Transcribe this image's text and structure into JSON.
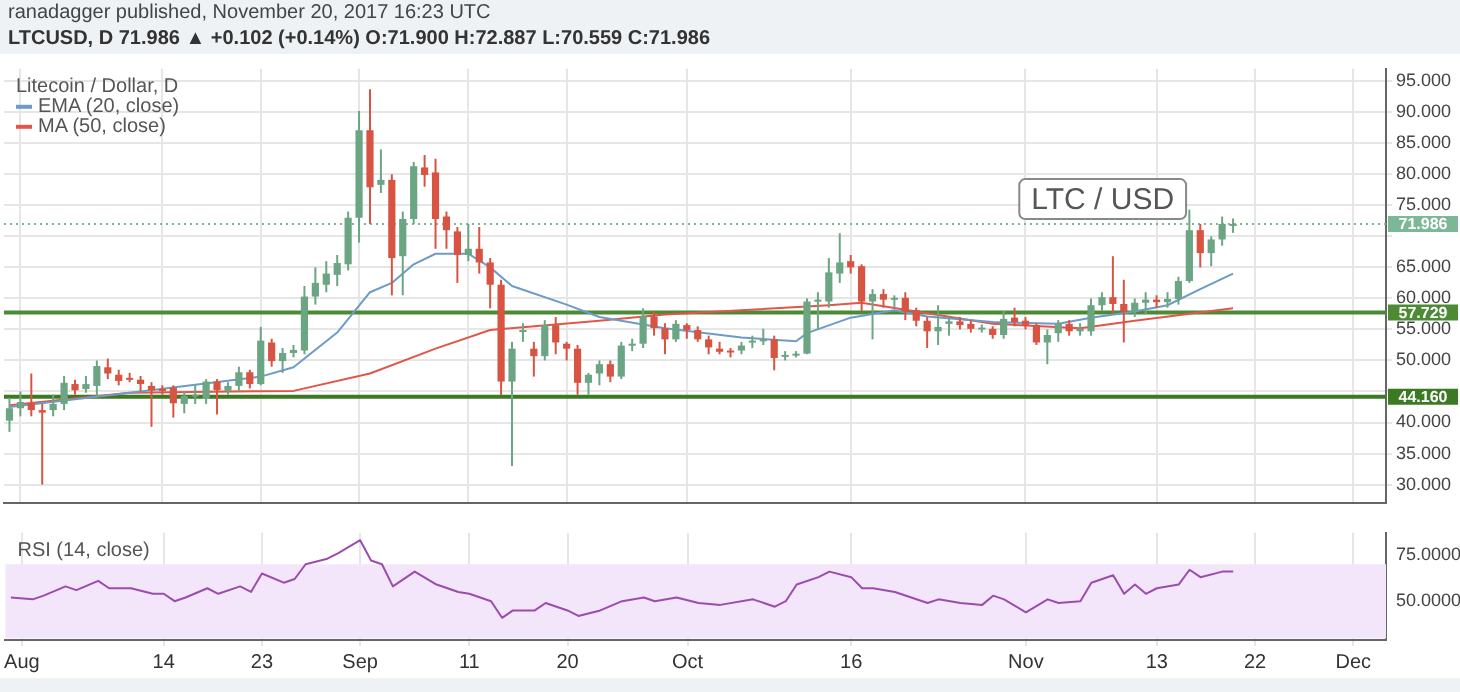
{
  "chart_data": [
    {
      "type": "candlestick",
      "title": "ranadagger published, November 20, 2017 16:23 UTC",
      "subtitle": "LTCUSD, D 71.986 ▲ +0.102 (+0.14%) O:71.900 H:72.887 L:70.559 C:71.986",
      "annotations": [
        "Litecoin / Dollar, D",
        "LTC / USD"
      ],
      "x": [
        "2017-07-31",
        "2017-08-01",
        "2017-08-02",
        "2017-08-03",
        "2017-08-04",
        "2017-08-05",
        "2017-08-06",
        "2017-08-07",
        "2017-08-08",
        "2017-08-09",
        "2017-08-10",
        "2017-08-11",
        "2017-08-12",
        "2017-08-13",
        "2017-08-14",
        "2017-08-15",
        "2017-08-16",
        "2017-08-17",
        "2017-08-18",
        "2017-08-19",
        "2017-08-20",
        "2017-08-21",
        "2017-08-22",
        "2017-08-23",
        "2017-08-24",
        "2017-08-25",
        "2017-08-26",
        "2017-08-27",
        "2017-08-28",
        "2017-08-29",
        "2017-08-30",
        "2017-08-31",
        "2017-09-01",
        "2017-09-02",
        "2017-09-03",
        "2017-09-04",
        "2017-09-05",
        "2017-09-06",
        "2017-09-07",
        "2017-09-08",
        "2017-09-09",
        "2017-09-10",
        "2017-09-11",
        "2017-09-12",
        "2017-09-13",
        "2017-09-14",
        "2017-09-15",
        "2017-09-16",
        "2017-09-17",
        "2017-09-18",
        "2017-09-19",
        "2017-09-20",
        "2017-09-21",
        "2017-09-22",
        "2017-09-23",
        "2017-09-24",
        "2017-09-25",
        "2017-09-26",
        "2017-09-27",
        "2017-09-28",
        "2017-09-29",
        "2017-09-30",
        "2017-10-01",
        "2017-10-02",
        "2017-10-03",
        "2017-10-04",
        "2017-10-05",
        "2017-10-06",
        "2017-10-07",
        "2017-10-08",
        "2017-10-09",
        "2017-10-10",
        "2017-10-11",
        "2017-10-12",
        "2017-10-13",
        "2017-10-14",
        "2017-10-15",
        "2017-10-16",
        "2017-10-17",
        "2017-10-18",
        "2017-10-19",
        "2017-10-20",
        "2017-10-21",
        "2017-10-22",
        "2017-10-23",
        "2017-10-24",
        "2017-10-25",
        "2017-10-26",
        "2017-10-27",
        "2017-10-28",
        "2017-10-29",
        "2017-10-30",
        "2017-10-31",
        "2017-11-01",
        "2017-11-02",
        "2017-11-03",
        "2017-11-04",
        "2017-11-05",
        "2017-11-06",
        "2017-11-07",
        "2017-11-08",
        "2017-11-09",
        "2017-11-10",
        "2017-11-11",
        "2017-11-12",
        "2017-11-13",
        "2017-11-14",
        "2017-11-15",
        "2017-11-16",
        "2017-11-17",
        "2017-11-18",
        "2017-11-19",
        "2017-11-20"
      ],
      "ohlc": [
        [
          40.3,
          44,
          38.5,
          42.3
        ],
        [
          42.3,
          45,
          41,
          43.3
        ],
        [
          43.1,
          47.9,
          41,
          42
        ],
        [
          42,
          43,
          30,
          41.6
        ],
        [
          42,
          44.5,
          41,
          43
        ],
        [
          43,
          47.5,
          42,
          46.4
        ],
        [
          46.2,
          46.9,
          44.5,
          45.2
        ],
        [
          45.4,
          47.5,
          44.8,
          46.2
        ],
        [
          45.9,
          50,
          44,
          49.1
        ],
        [
          48.9,
          50.3,
          47,
          47.9
        ],
        [
          47.7,
          48.5,
          46,
          46.7
        ],
        [
          47.2,
          48,
          46.5,
          46.9
        ],
        [
          46.9,
          47.5,
          45,
          46.2
        ],
        [
          45.9,
          46.5,
          39.3,
          45.2
        ],
        [
          45.4,
          46,
          44.5,
          45.1
        ],
        [
          45.6,
          46,
          40.8,
          43.1
        ],
        [
          43,
          45,
          41.5,
          44.3
        ],
        [
          44.3,
          46,
          43,
          44.5
        ],
        [
          43.8,
          47,
          43,
          46.6
        ],
        [
          46.6,
          47,
          41.3,
          45.2
        ],
        [
          45.1,
          46.5,
          44.5,
          45.9
        ],
        [
          45.9,
          49,
          45,
          48.1
        ],
        [
          48.1,
          48.5,
          45.5,
          46.2
        ],
        [
          46.2,
          55.4,
          46,
          53.2
        ],
        [
          52.9,
          53.5,
          49,
          49.9
        ],
        [
          49.9,
          52,
          48,
          51.2
        ],
        [
          51.2,
          52.5,
          50.5,
          51.7
        ],
        [
          51.6,
          62,
          51,
          60.3
        ],
        [
          60.3,
          65,
          59,
          62.5
        ],
        [
          62.2,
          66,
          61,
          64
        ],
        [
          63.8,
          67,
          62,
          65.7
        ],
        [
          65.5,
          74,
          64.5,
          73
        ],
        [
          73,
          90.2,
          69,
          87.1
        ],
        [
          87.1,
          93.7,
          72,
          77.9
        ],
        [
          78.3,
          84,
          77,
          79.1
        ],
        [
          79.1,
          80,
          60.5,
          66.5
        ],
        [
          66.8,
          74,
          60.5,
          72.8
        ],
        [
          72.8,
          82,
          72,
          81.3
        ],
        [
          81.1,
          83.1,
          78,
          79.9
        ],
        [
          80.3,
          82.5,
          68,
          72.8
        ],
        [
          73.2,
          74,
          68,
          71
        ],
        [
          70.8,
          71.5,
          62.5,
          67
        ],
        [
          67,
          72,
          66,
          68
        ],
        [
          68,
          71.5,
          64,
          65.8
        ],
        [
          65.8,
          66.5,
          58.4,
          62.2
        ],
        [
          62.2,
          63,
          44.4,
          46.6
        ],
        [
          46.6,
          53,
          33,
          51.9
        ],
        [
          54.7,
          56,
          53,
          54.9
        ],
        [
          51.9,
          53,
          47.4,
          50.7
        ],
        [
          50.7,
          56.5,
          50,
          55.7
        ],
        [
          55.7,
          57,
          51,
          52.9
        ],
        [
          52.7,
          53,
          50,
          51.9
        ],
        [
          51.9,
          52.5,
          44.5,
          46.4
        ],
        [
          46.4,
          48,
          44.5,
          47.7
        ],
        [
          47.9,
          50,
          46,
          49.4
        ],
        [
          49.4,
          50,
          46.5,
          47.4
        ],
        [
          47.4,
          53,
          47,
          52.4
        ],
        [
          52.4,
          53.5,
          51.5,
          52.7
        ],
        [
          52.7,
          58.4,
          52,
          57.1
        ],
        [
          57.1,
          58,
          54,
          55.2
        ],
        [
          55.2,
          56,
          51,
          53.4
        ],
        [
          53.4,
          56.5,
          53,
          55.9
        ],
        [
          55.7,
          56,
          53.5,
          54.9
        ],
        [
          54.9,
          55.5,
          53,
          53.4
        ],
        [
          53.4,
          54,
          51,
          52.1
        ],
        [
          51.9,
          53,
          51,
          51.4
        ],
        [
          51.6,
          52,
          50.5,
          51.4
        ],
        [
          51.6,
          53,
          51,
          52.4
        ],
        [
          52.9,
          54,
          52,
          53.2
        ],
        [
          53.1,
          55.1,
          52.5,
          53.4
        ],
        [
          53.4,
          54,
          48.4,
          50.4
        ],
        [
          50.6,
          51.5,
          50,
          50.9
        ],
        [
          50.9,
          51.5,
          50.5,
          51.1
        ],
        [
          51.1,
          60,
          51,
          59.5
        ],
        [
          59.5,
          61,
          55,
          59.8
        ],
        [
          59.5,
          66.5,
          58.5,
          64.2
        ],
        [
          64,
          70.5,
          62.5,
          65.8
        ],
        [
          66,
          67,
          64,
          65
        ],
        [
          65.2,
          65.5,
          58,
          59.5
        ],
        [
          59.5,
          61.5,
          53.4,
          60.7
        ],
        [
          60.7,
          61.5,
          58.5,
          59.8
        ],
        [
          59.9,
          60.5,
          58.5,
          60.1
        ],
        [
          60.1,
          61,
          56.5,
          57.9
        ],
        [
          58.1,
          58.5,
          55.5,
          56.4
        ],
        [
          56.4,
          57,
          52,
          54.7
        ],
        [
          54.7,
          58.9,
          52.5,
          55.4
        ],
        [
          55.9,
          57,
          54,
          56.3
        ],
        [
          56.3,
          57,
          55,
          55.7
        ],
        [
          55.9,
          56.5,
          54.5,
          55.1
        ],
        [
          55.1,
          55.8,
          54.5,
          55.3
        ],
        [
          55.1,
          55.5,
          53.5,
          54.1
        ],
        [
          54.1,
          58,
          53.5,
          56.7
        ],
        [
          56.9,
          58.5,
          55.5,
          56.2
        ],
        [
          56.4,
          57,
          55,
          55.7
        ],
        [
          55.7,
          56,
          52.5,
          52.9
        ],
        [
          52.9,
          55,
          49.4,
          54.1
        ],
        [
          54.4,
          56.5,
          53,
          55.9
        ],
        [
          55.9,
          56.5,
          54,
          54.7
        ],
        [
          54.7,
          56,
          54,
          55.1
        ],
        [
          54.7,
          60,
          54,
          58.9
        ],
        [
          58.9,
          61,
          58,
          60.2
        ],
        [
          60.2,
          66.8,
          57.5,
          59.1
        ],
        [
          59.1,
          63,
          52.9,
          57.9
        ],
        [
          57.9,
          60,
          57,
          59.3
        ],
        [
          59.3,
          61,
          57.5,
          59.8
        ],
        [
          59.8,
          60.5,
          58.5,
          59.4
        ],
        [
          59.4,
          61,
          58.5,
          59.9
        ],
        [
          59.9,
          63.5,
          59,
          62.8
        ],
        [
          62.8,
          74.3,
          62.5,
          71
        ],
        [
          71,
          72,
          65,
          67.3
        ],
        [
          67.3,
          70,
          65.2,
          69.5
        ],
        [
          69.5,
          73.2,
          68.5,
          72
        ],
        [
          71.9,
          72.887,
          70.559,
          71.986
        ]
      ],
      "colors": [
        "#6ba583",
        "#6ba583",
        "#d75442",
        "#d75442",
        "#6ba583",
        "#6ba583",
        "#d75442",
        "#6ba583",
        "#6ba583",
        "#d75442",
        "#d75442",
        "#d75442",
        "#d75442",
        "#d75442",
        "#d75442",
        "#d75442",
        "#6ba583",
        "#6ba583",
        "#6ba583",
        "#d75442",
        "#6ba583",
        "#6ba583",
        "#d75442",
        "#6ba583",
        "#d75442",
        "#6ba583",
        "#6ba583",
        "#6ba583",
        "#6ba583",
        "#6ba583",
        "#6ba583",
        "#6ba583",
        "#6ba583",
        "#d75442",
        "#6ba583",
        "#d75442",
        "#6ba583",
        "#6ba583",
        "#d75442",
        "#d75442",
        "#d75442",
        "#d75442",
        "#6ba583",
        "#d75442",
        "#d75442",
        "#d75442",
        "#6ba583",
        "#6ba583",
        "#d75442",
        "#6ba583",
        "#d75442",
        "#d75442",
        "#d75442",
        "#6ba583",
        "#6ba583",
        "#d75442",
        "#6ba583",
        "#6ba583",
        "#6ba583",
        "#d75442",
        "#d75442",
        "#6ba583",
        "#d75442",
        "#d75442",
        "#d75442",
        "#d75442",
        "#d75442",
        "#6ba583",
        "#6ba583",
        "#6ba583",
        "#d75442",
        "#6ba583",
        "#6ba583",
        "#6ba583",
        "#6ba583",
        "#6ba583",
        "#6ba583",
        "#d75442",
        "#d75442",
        "#6ba583",
        "#d75442",
        "#6ba583",
        "#d75442",
        "#d75442",
        "#d75442",
        "#6ba583",
        "#6ba583",
        "#d75442",
        "#d75442",
        "#6ba583",
        "#d75442",
        "#6ba583",
        "#d75442",
        "#d75442",
        "#d75442",
        "#6ba583",
        "#6ba583",
        "#d75442",
        "#6ba583",
        "#6ba583",
        "#6ba583",
        "#d75442",
        "#d75442",
        "#6ba583",
        "#6ba583",
        "#d75442",
        "#6ba583",
        "#6ba583",
        "#6ba583",
        "#d75442",
        "#6ba583",
        "#6ba583",
        "#6ba583"
      ],
      "series": [
        {
          "name": "EMA (20, close)",
          "type": "line",
          "color": "#6d9bc8",
          "x": [
            "2017-07-31",
            "2017-08-12",
            "2017-08-23",
            "2017-08-26",
            "2017-08-30",
            "2017-09-02",
            "2017-09-04",
            "2017-09-06",
            "2017-09-08",
            "2017-09-11",
            "2017-09-13",
            "2017-09-15",
            "2017-09-20",
            "2017-09-23",
            "2017-09-29",
            "2017-10-06",
            "2017-10-11",
            "2017-10-12",
            "2017-10-16",
            "2017-10-20",
            "2017-10-23",
            "2017-10-29",
            "2017-11-04",
            "2017-11-07",
            "2017-11-11",
            "2017-11-14",
            "2017-11-17",
            "2017-11-20"
          ],
          "values": [
            42.5,
            45,
            47.4,
            48.9,
            54.5,
            61,
            62.5,
            65.5,
            67.2,
            67.2,
            65,
            62,
            59,
            57,
            55.2,
            53.7,
            53.1,
            54.4,
            56.9,
            58.1,
            57.1,
            56.2,
            55.9,
            56.9,
            57.9,
            58.9,
            61.5,
            64
          ]
        },
        {
          "name": "MA (50, close)",
          "type": "line",
          "color": "#e0574a",
          "x": [
            "2017-07-31",
            "2017-08-11",
            "2017-08-26",
            "2017-09-02",
            "2017-09-08",
            "2017-09-13",
            "2017-09-23",
            "2017-09-29",
            "2017-10-06",
            "2017-10-14",
            "2017-10-17",
            "2017-10-22",
            "2017-10-29",
            "2017-11-06",
            "2017-11-11",
            "2017-11-20"
          ],
          "values": [
            42.8,
            44.8,
            45.1,
            47.9,
            51.9,
            54.9,
            56.4,
            57.4,
            58.1,
            58.9,
            59.3,
            57.9,
            55.9,
            55.2,
            56.4,
            58.4
          ]
        }
      ],
      "ref_lines": [
        {
          "axis": "y",
          "value": 57.729,
          "label": "57.729",
          "color": "#4c8a35"
        },
        {
          "axis": "y",
          "value": 44.16,
          "label": "44.160",
          "color": "#3b7a22"
        },
        {
          "axis": "y",
          "value": 71.986,
          "label": "71.986",
          "color": "#7db896",
          "line_style": "dotted"
        }
      ],
      "xlim": [
        "2017-07-30T12:00",
        "2017-12-04"
      ],
      "xticks": [
        {
          "value": "2017-08-01",
          "label": null
        },
        {
          "value": "2017-08-14",
          "label": null
        },
        {
          "value": "2017-08-23",
          "label": null
        },
        {
          "value": "2017-09-01",
          "label": null
        },
        {
          "value": "2017-09-11",
          "label": null
        },
        {
          "value": "2017-09-20",
          "label": null
        },
        {
          "value": "2017-10-01",
          "label": null
        },
        {
          "value": "2017-10-16",
          "label": null
        },
        {
          "value": "2017-11-01",
          "label": null
        },
        {
          "value": "2017-11-13",
          "label": null
        },
        {
          "value": "2017-11-22",
          "label": null
        },
        {
          "value": "2017-12-01",
          "label": null
        }
      ],
      "ylim": [
        27,
        97
      ],
      "yticks": [
        {
          "value": 30,
          "label": "30.000"
        },
        {
          "value": 35,
          "label": "35.000"
        },
        {
          "value": 40,
          "label": "40.000"
        },
        {
          "value": 45,
          "label": null
        },
        {
          "value": 50,
          "label": "50.000"
        },
        {
          "value": 55,
          "label": "55.000"
        },
        {
          "value": 60,
          "label": "60.000"
        },
        {
          "value": 65,
          "label": "65.000"
        },
        {
          "value": 70,
          "label": null
        },
        {
          "value": 75,
          "label": "75.000"
        },
        {
          "value": 80,
          "label": "80.000"
        },
        {
          "value": 85,
          "label": "85.000"
        },
        {
          "value": 90,
          "label": "90.000"
        },
        {
          "value": 95,
          "label": "95.000"
        }
      ],
      "grid": true,
      "legend": "top left",
      "tick_labels": "y"
    },
    {
      "type": "line",
      "title": "RSI (14, close)",
      "series": [
        {
          "name": null,
          "color": "#9b4dad",
          "x": [
            "2017-07-31",
            "2017-08-02",
            "2017-08-03",
            "2017-08-05",
            "2017-08-06",
            "2017-08-08",
            "2017-08-09",
            "2017-08-11",
            "2017-08-13",
            "2017-08-14",
            "2017-08-15",
            "2017-08-16",
            "2017-08-18",
            "2017-08-19",
            "2017-08-21",
            "2017-08-22",
            "2017-08-23",
            "2017-08-25",
            "2017-08-26",
            "2017-08-27",
            "2017-08-29",
            "2017-08-30",
            "2017-09-01",
            "2017-09-02",
            "2017-09-03",
            "2017-09-04",
            "2017-09-06",
            "2017-09-08",
            "2017-09-10",
            "2017-09-11",
            "2017-09-13",
            "2017-09-14",
            "2017-09-15",
            "2017-09-17",
            "2017-09-18",
            "2017-09-20",
            "2017-09-21",
            "2017-09-23",
            "2017-09-25",
            "2017-09-27",
            "2017-09-28",
            "2017-09-30",
            "2017-10-02",
            "2017-10-04",
            "2017-10-07",
            "2017-10-09",
            "2017-10-10",
            "2017-10-11",
            "2017-10-13",
            "2017-10-14",
            "2017-10-16",
            "2017-10-17",
            "2017-10-18",
            "2017-10-20",
            "2017-10-23",
            "2017-10-24",
            "2017-10-26",
            "2017-10-28",
            "2017-10-29",
            "2017-10-30",
            "2017-11-01",
            "2017-11-03",
            "2017-11-04",
            "2017-11-06",
            "2017-11-07",
            "2017-11-09",
            "2017-11-10",
            "2017-11-11",
            "2017-11-12",
            "2017-11-13",
            "2017-11-15",
            "2017-11-16",
            "2017-11-17",
            "2017-11-19",
            "2017-11-20"
          ],
          "values": [
            52,
            51,
            53,
            58,
            56,
            61,
            57,
            57,
            54,
            54,
            50,
            52,
            57,
            54,
            58,
            55,
            65,
            60,
            62,
            70,
            73,
            76,
            83,
            72,
            70,
            58,
            66,
            59,
            55,
            54,
            50,
            41,
            45,
            45,
            49,
            45,
            42,
            45,
            50,
            52,
            50,
            52,
            49,
            48,
            51,
            47,
            50,
            59,
            63,
            66,
            63,
            57,
            57,
            55,
            49,
            51,
            49,
            48,
            53,
            51,
            44,
            51,
            49,
            50,
            60,
            64,
            54,
            59,
            54,
            57,
            59,
            67,
            63,
            66,
            66
          ]
        }
      ],
      "bands": [
        {
          "axis": "y",
          "from": 30,
          "to": 70,
          "color": "#f3e6fb"
        }
      ],
      "xlim": [
        "2017-07-30T12:00",
        "2017-12-04"
      ],
      "xticks": [
        {
          "value": "2017-08-01",
          "label": "Aug"
        },
        {
          "value": "2017-08-14",
          "label": "14"
        },
        {
          "value": "2017-08-23",
          "label": "23"
        },
        {
          "value": "2017-09-01",
          "label": "Sep"
        },
        {
          "value": "2017-09-11",
          "label": "11"
        },
        {
          "value": "2017-09-20",
          "label": "20"
        },
        {
          "value": "2017-10-01",
          "label": "Oct"
        },
        {
          "value": "2017-10-16",
          "label": "16"
        },
        {
          "value": "2017-11-01",
          "label": "Nov"
        },
        {
          "value": "2017-11-13",
          "label": "13"
        },
        {
          "value": "2017-11-22",
          "label": "22"
        },
        {
          "value": "2017-12-01",
          "label": "Dec"
        }
      ],
      "ylim": [
        29,
        87
      ],
      "yticks": [
        {
          "value": 50,
          "label": "50.0000"
        },
        {
          "value": 75,
          "label": "75.0000"
        }
      ],
      "grid": "x"
    }
  ]
}
